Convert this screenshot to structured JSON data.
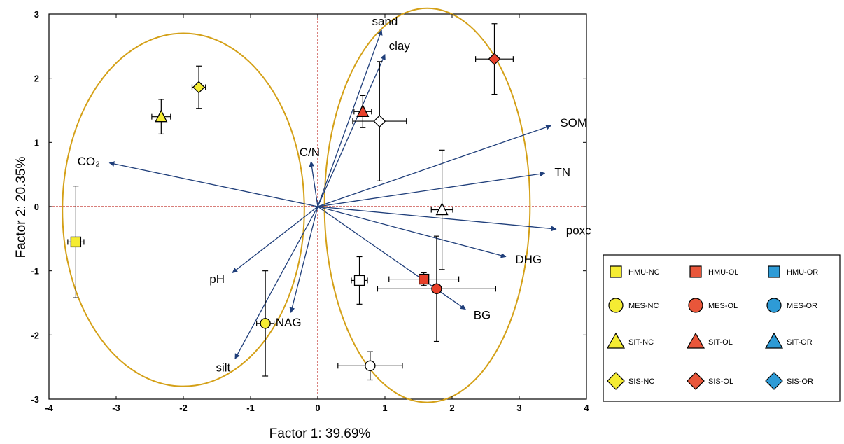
{
  "chart_data": {
    "type": "scatter",
    "title": "",
    "xlabel": "Factor 1: 39.69%",
    "ylabel": "Factor 2: 20.35%",
    "xlim": [
      -4,
      4
    ],
    "ylim": [
      -3,
      3
    ],
    "xticks": [
      -4,
      -3,
      -2,
      -1,
      0,
      1,
      2,
      3,
      4
    ],
    "yticks": [
      -3,
      -2,
      -1,
      0,
      1,
      2,
      3
    ],
    "grid": false,
    "reference_lines": [
      {
        "axis": "x",
        "value": 0
      },
      {
        "axis": "y",
        "value": 0
      }
    ],
    "colors": {
      "NC": "#f5ec33",
      "OL": "#e8402a",
      "OR": "#2e9bd6",
      "open": "#ffffff",
      "vector": "#1f3e7a",
      "ellipse": "#d4a017",
      "refline": "#c0302a"
    },
    "loading_vectors": [
      {
        "name": "sand",
        "x": 0.95,
        "y": 2.75
      },
      {
        "name": "clay",
        "x": 1.0,
        "y": 2.37
      },
      {
        "name": "SOM",
        "x": 3.47,
        "y": 1.26
      },
      {
        "name": "TN",
        "x": 3.38,
        "y": 0.52
      },
      {
        "name": "poxc",
        "x": 3.55,
        "y": -0.35
      },
      {
        "name": "DHG",
        "x": 2.8,
        "y": -0.78
      },
      {
        "name": "BG",
        "x": 2.2,
        "y": -1.6
      },
      {
        "name": "NAG",
        "x": -0.4,
        "y": -1.65
      },
      {
        "name": "silt",
        "x": -1.23,
        "y": -2.37
      },
      {
        "name": "pH",
        "x": -1.27,
        "y": -1.03
      },
      {
        "name": "C/N",
        "x": -0.1,
        "y": 0.7
      },
      {
        "name": "CO₂",
        "x": -3.1,
        "y": 0.68
      }
    ],
    "ellipses": [
      {
        "cx": -2.0,
        "cy": -0.05,
        "rx": 1.8,
        "ry": 2.75
      },
      {
        "cx": 1.63,
        "cy": 0.02,
        "rx": 1.53,
        "ry": 3.07
      }
    ],
    "points": [
      {
        "group": "HMU-NC",
        "marker": "square",
        "fill": "NC",
        "x": -3.6,
        "y": -0.55,
        "xerr": 0.12,
        "yerr": 0.87
      },
      {
        "group": "SIT-NC",
        "marker": "triangle",
        "fill": "NC",
        "x": -2.33,
        "y": 1.4,
        "xerr": 0.14,
        "yerr": 0.27
      },
      {
        "group": "SIS-NC",
        "marker": "diamond",
        "fill": "NC",
        "x": -1.77,
        "y": 1.86,
        "xerr": 0.1,
        "yerr": 0.33
      },
      {
        "group": "MES-NC",
        "marker": "circle",
        "fill": "NC",
        "x": -0.78,
        "y": -1.82,
        "xerr": 0.13,
        "yerr": 0.82
      },
      {
        "group": "SIT-OL",
        "marker": "triangle",
        "fill": "OL",
        "x": 0.67,
        "y": 1.48,
        "xerr": 0.13,
        "yerr": 0.25
      },
      {
        "group": "open-diamond",
        "marker": "diamond",
        "fill": "open",
        "x": 0.92,
        "y": 1.33,
        "xerr": 0.4,
        "yerr": 0.93
      },
      {
        "group": "SIS-OL",
        "marker": "diamond",
        "fill": "OL",
        "x": 2.63,
        "y": 2.3,
        "xerr": 0.28,
        "yerr": 0.55
      },
      {
        "group": "open-triangle",
        "marker": "triangle",
        "fill": "open",
        "x": 1.85,
        "y": -0.05,
        "xerr": 0.16,
        "yerr": 0.93
      },
      {
        "group": "open-square",
        "marker": "square",
        "fill": "open",
        "x": 0.62,
        "y": -1.15,
        "xerr": 0.12,
        "yerr": 0.37
      },
      {
        "group": "HMU-OL",
        "marker": "square",
        "fill": "OL",
        "x": 1.58,
        "y": -1.13,
        "xerr": 0.52,
        "yerr": 0.1
      },
      {
        "group": "MES-OL",
        "marker": "circle",
        "fill": "OL",
        "x": 1.77,
        "y": -1.28,
        "xerr": 0.88,
        "yerr": 0.82
      },
      {
        "group": "open-circle",
        "marker": "circle",
        "fill": "open",
        "x": 0.78,
        "y": -2.48,
        "xerr": 0.48,
        "yerr": 0.22
      }
    ]
  },
  "legend": {
    "items": [
      {
        "label": "HMU-NC",
        "marker": "square",
        "color": "#f5ec33"
      },
      {
        "label": "HMU-OL",
        "marker": "square",
        "color": "#e8563a"
      },
      {
        "label": "HMU-OR",
        "marker": "square",
        "color": "#2e9bd6"
      },
      {
        "label": "MES-NC",
        "marker": "circle",
        "color": "#f5ec33"
      },
      {
        "label": "MES-OL",
        "marker": "circle",
        "color": "#e8563a"
      },
      {
        "label": "MES-OR",
        "marker": "circle",
        "color": "#2e9bd6"
      },
      {
        "label": "SIT-NC",
        "marker": "triangle",
        "color": "#f5ec33"
      },
      {
        "label": "SIT-OL",
        "marker": "triangle",
        "color": "#e8563a"
      },
      {
        "label": "SIT-OR",
        "marker": "triangle",
        "color": "#2e9bd6"
      },
      {
        "label": "SIS-NC",
        "marker": "diamond",
        "color": "#f5ec33"
      },
      {
        "label": "SIS-OL",
        "marker": "diamond",
        "color": "#e8563a"
      },
      {
        "label": "SIS-OR",
        "marker": "diamond",
        "color": "#2e9bd6"
      }
    ]
  }
}
